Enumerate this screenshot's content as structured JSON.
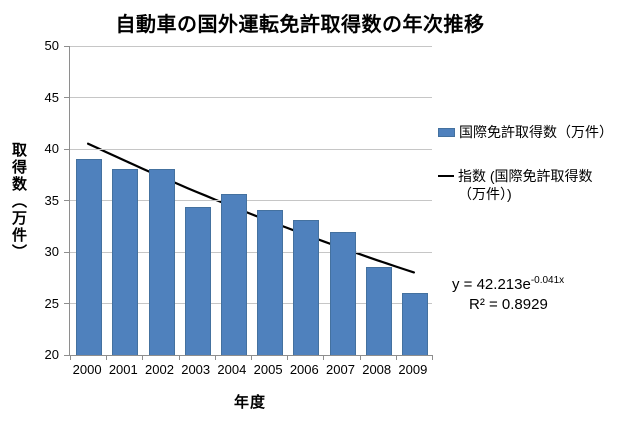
{
  "chart_data": {
    "type": "bar",
    "title": "自動車の国外運転免許取得数の年次推移",
    "xlabel": "年度",
    "ylabel": "取得数（万件）",
    "ylim": [
      20,
      50
    ],
    "yticks": [
      20,
      25,
      30,
      35,
      40,
      45,
      50
    ],
    "categories": [
      "2000",
      "2001",
      "2002",
      "2003",
      "2004",
      "2005",
      "2006",
      "2007",
      "2008",
      "2009"
    ],
    "series": [
      {
        "name": "国際免許取得数（万件）",
        "values": [
          39.0,
          38.1,
          38.1,
          34.4,
          35.6,
          34.1,
          33.1,
          31.9,
          28.5,
          26.0
        ]
      }
    ],
    "trendline": {
      "name": "指数 (国際免許取得数（万件）)",
      "type": "exponential",
      "a": 42.213,
      "b": -0.041,
      "equation_base": "y = 42.213e",
      "equation_exponent": "-0.041x",
      "r_squared": "R² = 0.8929"
    },
    "legend_position": "right",
    "grid": true
  },
  "colors": {
    "background": "#ffffff",
    "bar": "#4F81BD",
    "bar_border": "#44719f",
    "trendline": "#000000",
    "gridline": "#c6c6c6",
    "axis": "#8e8e8e",
    "text": "#000000"
  }
}
